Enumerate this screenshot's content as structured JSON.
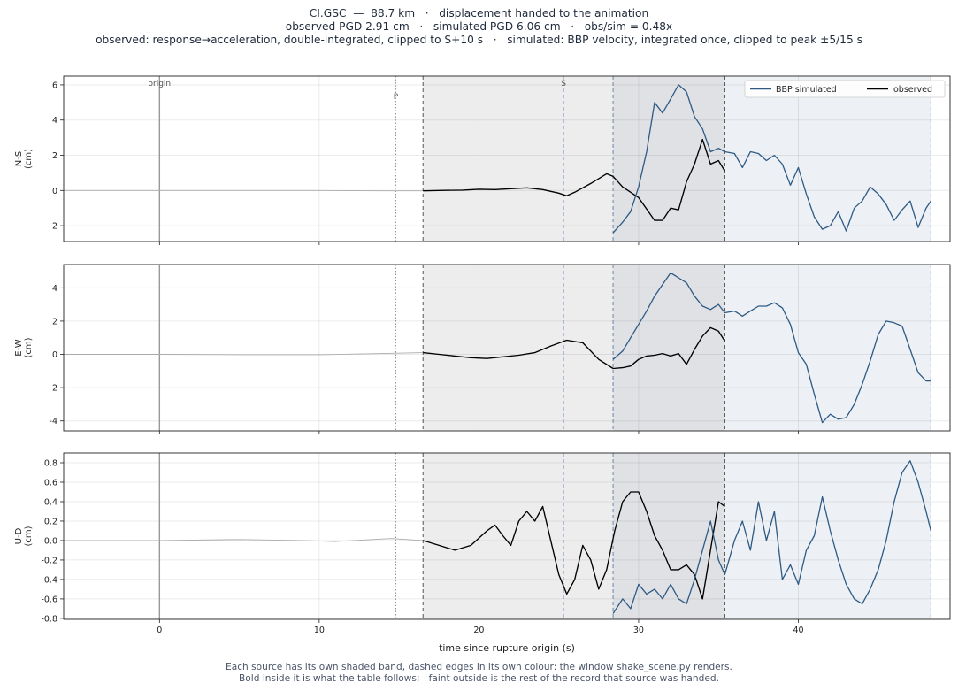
{
  "header": {
    "line1": "CI.GSC  —  88.7 km   ·   displacement handed to the animation",
    "line2": "observed PGD 2.91 cm   ·   simulated PGD 6.06 cm   ·   obs/sim = 0.48x",
    "line3": "observed: response→acceleration, double-integrated, clipped to S+10 s   ·   simulated: BBP velocity, integrated once, clipped to peak ±5/15 s"
  },
  "footer": {
    "line1": "Each source has its own shaded band, dashed edges in its own colour: the window shake_scene.py renders.",
    "line2": "Bold inside it is what the table follows;   faint outside is the rest of the record that source was handed."
  },
  "legend": {
    "simulated": "BBP simulated",
    "observed": "observed"
  },
  "colors": {
    "simulated": "#2e5a84",
    "observed": "#000000",
    "faint": "#aaaaaa",
    "obs_band": "#ededed",
    "sim_band": "#edf1f5",
    "overlap_band": "#dfe1e5"
  },
  "chart_data": {
    "type": "line",
    "xlabel": "time since rupture origin (s)",
    "xlim": [
      -6,
      49.5
    ],
    "xticks": [
      0,
      10,
      20,
      30,
      40
    ],
    "markers": {
      "origin": 0,
      "P": 14.8,
      "S": 25.3
    },
    "marker_labels": {
      "origin": "origin",
      "P": "P",
      "S": "S"
    },
    "windows": {
      "observed": [
        16.5,
        35.4
      ],
      "simulated": [
        28.4,
        48.3
      ]
    },
    "legend_position": "top-right",
    "panels": [
      {
        "ylabel": "N-S",
        "unit": "(cm)",
        "ylim": [
          -2.9,
          6.5
        ],
        "yticks": [
          -2,
          0,
          2,
          4,
          6
        ],
        "series": [
          {
            "name": "observed",
            "x": [
              -6,
              0,
              5,
              10,
              14,
              16.5,
              17.5,
              19,
              20,
              21,
              22,
              23,
              24,
              25,
              25.5,
              26,
              27,
              28,
              28.4,
              29,
              30,
              31,
              31.5,
              32,
              32.5,
              33,
              33.5,
              34,
              34.5,
              35,
              35.4
            ],
            "y": [
              0,
              0,
              0,
              0,
              -0.02,
              -0.02,
              0,
              0.02,
              0.07,
              0.05,
              0.1,
              0.15,
              0.05,
              -0.15,
              -0.3,
              -0.1,
              0.4,
              0.95,
              0.8,
              0.2,
              -0.4,
              -1.7,
              -1.7,
              -1.0,
              -1.1,
              0.5,
              1.5,
              2.9,
              1.5,
              1.7,
              1.1
            ]
          },
          {
            "name": "BBP simulated",
            "x": [
              28.4,
              29,
              29.5,
              30,
              30.5,
              31,
              31.5,
              32,
              32.5,
              33,
              33.5,
              34,
              34.5,
              35,
              35.4,
              36,
              36.5,
              37,
              37.5,
              38,
              38.5,
              39,
              39.5,
              40,
              40.5,
              41,
              41.5,
              42,
              42.5,
              43,
              43.5,
              44,
              44.5,
              45,
              45.5,
              46,
              46.5,
              47,
              47.5,
              48,
              48.3
            ],
            "y": [
              -2.4,
              -1.8,
              -1.2,
              0.2,
              2.2,
              5.0,
              4.4,
              5.2,
              6.0,
              5.6,
              4.2,
              3.5,
              2.2,
              2.4,
              2.2,
              2.1,
              1.3,
              2.2,
              2.1,
              1.7,
              2.0,
              1.5,
              0.3,
              1.3,
              -0.2,
              -1.5,
              -2.2,
              -2.0,
              -1.2,
              -2.3,
              -1.0,
              -0.6,
              0.2,
              -0.2,
              -0.8,
              -1.7,
              -1.1,
              -0.6,
              -2.1,
              -1.0,
              -0.6
            ]
          }
        ]
      },
      {
        "ylabel": "E-W",
        "unit": "(cm)",
        "ylim": [
          -4.6,
          5.4
        ],
        "yticks": [
          -4,
          -2,
          0,
          2,
          4
        ],
        "series": [
          {
            "name": "observed",
            "x": [
              -6,
              0,
              5,
              10,
              14,
              16.5,
              17.5,
              18.5,
              19.5,
              20.5,
              21.5,
              22.5,
              23.5,
              24.5,
              25.5,
              26.5,
              27.5,
              28.4,
              29,
              29.5,
              30,
              30.5,
              31,
              31.5,
              32,
              32.5,
              33,
              33.5,
              34,
              34.5,
              35,
              35.4
            ],
            "y": [
              0,
              0,
              -0.02,
              -0.02,
              0.05,
              0.1,
              0.0,
              -0.1,
              -0.2,
              -0.25,
              -0.15,
              -0.05,
              0.1,
              0.5,
              0.85,
              0.7,
              -0.3,
              -0.85,
              -0.8,
              -0.7,
              -0.3,
              -0.1,
              -0.05,
              0.05,
              -0.1,
              0.05,
              -0.6,
              0.3,
              1.1,
              1.6,
              1.4,
              0.8
            ]
          },
          {
            "name": "BBP simulated",
            "x": [
              28.4,
              29,
              29.5,
              30,
              30.5,
              31,
              31.5,
              32,
              32.5,
              33,
              33.5,
              34,
              34.5,
              35,
              35.4,
              36,
              36.5,
              37,
              37.5,
              38,
              38.5,
              39,
              39.5,
              40,
              40.5,
              41,
              41.5,
              42,
              42.5,
              43,
              43.5,
              44,
              44.5,
              45,
              45.5,
              46,
              46.5,
              47,
              47.5,
              48,
              48.3
            ],
            "y": [
              -0.3,
              0.2,
              1.0,
              1.8,
              2.6,
              3.5,
              4.2,
              4.9,
              4.6,
              4.3,
              3.5,
              2.9,
              2.7,
              3.0,
              2.5,
              2.6,
              2.3,
              2.6,
              2.9,
              2.9,
              3.1,
              2.8,
              1.8,
              0.1,
              -0.6,
              -2.4,
              -4.1,
              -3.6,
              -3.9,
              -3.8,
              -3.0,
              -1.8,
              -0.4,
              1.2,
              2.0,
              1.9,
              1.7,
              0.3,
              -1.1,
              -1.6,
              -1.6
            ]
          }
        ]
      },
      {
        "ylabel": "U-D",
        "unit": "(cm)",
        "ylim": [
          -0.81,
          0.9
        ],
        "yticks": [
          -0.8,
          -0.6,
          -0.4,
          -0.2,
          0.0,
          0.2,
          0.4,
          0.6,
          0.8
        ],
        "series": [
          {
            "name": "observed",
            "x": [
              -6,
              0,
              5,
              9,
              11,
              14.5,
              16.5,
              17.5,
              18.5,
              19.5,
              20.5,
              21,
              21.5,
              22,
              22.5,
              23,
              23.5,
              24,
              24.5,
              25,
              25.5,
              26,
              26.5,
              27,
              27.5,
              28,
              28.5,
              29,
              29.5,
              30,
              30.5,
              31,
              31.5,
              32,
              32.5,
              33,
              33.5,
              34,
              34.5,
              35,
              35.4
            ],
            "y": [
              0,
              0,
              0.01,
              0.0,
              -0.01,
              0.02,
              0.0,
              -0.05,
              -0.1,
              -0.05,
              0.1,
              0.16,
              0.05,
              -0.05,
              0.2,
              0.3,
              0.2,
              0.35,
              0.0,
              -0.35,
              -0.55,
              -0.4,
              -0.05,
              -0.2,
              -0.5,
              -0.3,
              0.1,
              0.4,
              0.5,
              0.5,
              0.3,
              0.05,
              -0.1,
              -0.3,
              -0.3,
              -0.25,
              -0.35,
              -0.6,
              -0.1,
              0.4,
              0.35
            ]
          },
          {
            "name": "BBP simulated",
            "x": [
              28.4,
              29,
              29.5,
              30,
              30.5,
              31,
              31.5,
              32,
              32.5,
              33,
              33.5,
              34,
              34.5,
              35,
              35.4,
              36,
              36.5,
              37,
              37.5,
              38,
              38.5,
              39,
              39.5,
              40,
              40.5,
              41,
              41.5,
              42,
              42.5,
              43,
              43.5,
              44,
              44.5,
              45,
              45.5,
              46,
              46.5,
              47,
              47.5,
              48,
              48.3
            ],
            "y": [
              -0.75,
              -0.6,
              -0.7,
              -0.45,
              -0.55,
              -0.5,
              -0.6,
              -0.45,
              -0.6,
              -0.65,
              -0.4,
              -0.1,
              0.2,
              -0.2,
              -0.35,
              0.0,
              0.2,
              -0.1,
              0.4,
              0.0,
              0.3,
              -0.4,
              -0.25,
              -0.45,
              -0.1,
              0.05,
              0.45,
              0.1,
              -0.2,
              -0.45,
              -0.6,
              -0.65,
              -0.5,
              -0.3,
              0.0,
              0.4,
              0.7,
              0.82,
              0.6,
              0.3,
              0.1
            ]
          }
        ]
      }
    ]
  }
}
